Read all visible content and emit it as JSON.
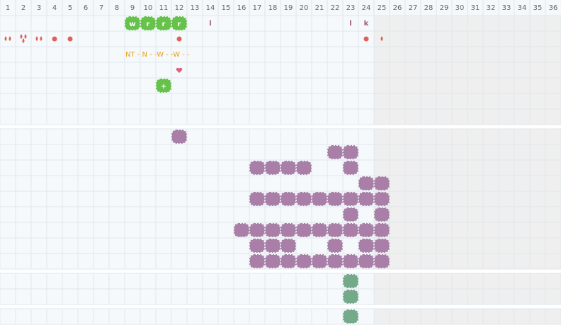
{
  "header": {
    "columns": [
      1,
      2,
      3,
      4,
      5,
      6,
      7,
      8,
      9,
      10,
      11,
      12,
      13,
      14,
      15,
      16,
      17,
      18,
      19,
      20,
      21,
      22,
      23,
      24,
      25,
      26,
      27,
      28,
      29,
      30,
      31,
      32,
      33,
      34,
      35,
      36
    ]
  },
  "sections": [
    {
      "rows": 7,
      "cells": [
        {
          "row": 0,
          "col": 9,
          "kind": "green",
          "text": "w"
        },
        {
          "row": 0,
          "col": 10,
          "kind": "green",
          "text": "r"
        },
        {
          "row": 0,
          "col": 11,
          "kind": "green",
          "text": "r"
        },
        {
          "row": 0,
          "col": 12,
          "kind": "green",
          "text": "r"
        },
        {
          "row": 0,
          "col": 14,
          "kind": "letter",
          "text": "l"
        },
        {
          "row": 0,
          "col": 23,
          "kind": "letter",
          "text": "l"
        },
        {
          "row": 0,
          "col": 24,
          "kind": "letter",
          "text": "k"
        },
        {
          "row": 1,
          "col": 1,
          "kind": "drops",
          "count": 2
        },
        {
          "row": 1,
          "col": 2,
          "kind": "drops",
          "count": 3
        },
        {
          "row": 1,
          "col": 3,
          "kind": "drops",
          "count": 2
        },
        {
          "row": 1,
          "col": 4,
          "kind": "dot"
        },
        {
          "row": 1,
          "col": 5,
          "kind": "dot"
        },
        {
          "row": 1,
          "col": 12,
          "kind": "dot"
        },
        {
          "row": 1,
          "col": 24,
          "kind": "dot"
        },
        {
          "row": 1,
          "col": 25,
          "kind": "drops",
          "count": 1
        },
        {
          "row": 2,
          "col": 9,
          "kind": "note",
          "text": "NT - N - -W - -W - -"
        },
        {
          "row": 3,
          "col": 12,
          "kind": "heart"
        },
        {
          "row": 4,
          "col": 11,
          "kind": "green",
          "text": "+"
        }
      ]
    },
    {
      "rows": 9,
      "cells": [
        {
          "row": 0,
          "col": 12,
          "kind": "purple"
        },
        {
          "row": 1,
          "col": 22,
          "kind": "purple"
        },
        {
          "row": 1,
          "col": 23,
          "kind": "purple"
        },
        {
          "row": 2,
          "col": 17,
          "kind": "purple"
        },
        {
          "row": 2,
          "col": 18,
          "kind": "purple"
        },
        {
          "row": 2,
          "col": 19,
          "kind": "purple"
        },
        {
          "row": 2,
          "col": 20,
          "kind": "purple"
        },
        {
          "row": 2,
          "col": 23,
          "kind": "purple"
        },
        {
          "row": 3,
          "col": 24,
          "kind": "purple"
        },
        {
          "row": 3,
          "col": 25,
          "kind": "purple"
        },
        {
          "row": 4,
          "col": 17,
          "kind": "purple"
        },
        {
          "row": 4,
          "col": 18,
          "kind": "purple"
        },
        {
          "row": 4,
          "col": 19,
          "kind": "purple"
        },
        {
          "row": 4,
          "col": 20,
          "kind": "purple"
        },
        {
          "row": 4,
          "col": 21,
          "kind": "purple"
        },
        {
          "row": 4,
          "col": 22,
          "kind": "purple"
        },
        {
          "row": 4,
          "col": 23,
          "kind": "purple"
        },
        {
          "row": 4,
          "col": 24,
          "kind": "purple"
        },
        {
          "row": 4,
          "col": 25,
          "kind": "purple"
        },
        {
          "row": 5,
          "col": 23,
          "kind": "purple"
        },
        {
          "row": 5,
          "col": 25,
          "kind": "purple"
        },
        {
          "row": 6,
          "col": 16,
          "kind": "purple"
        },
        {
          "row": 6,
          "col": 17,
          "kind": "purple"
        },
        {
          "row": 6,
          "col": 18,
          "kind": "purple"
        },
        {
          "row": 6,
          "col": 19,
          "kind": "purple"
        },
        {
          "row": 6,
          "col": 20,
          "kind": "purple"
        },
        {
          "row": 6,
          "col": 21,
          "kind": "purple"
        },
        {
          "row": 6,
          "col": 22,
          "kind": "purple"
        },
        {
          "row": 6,
          "col": 23,
          "kind": "purple"
        },
        {
          "row": 6,
          "col": 24,
          "kind": "purple"
        },
        {
          "row": 6,
          "col": 25,
          "kind": "purple"
        },
        {
          "row": 7,
          "col": 17,
          "kind": "purple"
        },
        {
          "row": 7,
          "col": 18,
          "kind": "purple"
        },
        {
          "row": 7,
          "col": 19,
          "kind": "purple"
        },
        {
          "row": 7,
          "col": 22,
          "kind": "purple"
        },
        {
          "row": 7,
          "col": 24,
          "kind": "purple"
        },
        {
          "row": 7,
          "col": 25,
          "kind": "purple"
        },
        {
          "row": 8,
          "col": 17,
          "kind": "purple"
        },
        {
          "row": 8,
          "col": 18,
          "kind": "purple"
        },
        {
          "row": 8,
          "col": 19,
          "kind": "purple"
        },
        {
          "row": 8,
          "col": 20,
          "kind": "purple"
        },
        {
          "row": 8,
          "col": 21,
          "kind": "purple"
        },
        {
          "row": 8,
          "col": 22,
          "kind": "purple"
        },
        {
          "row": 8,
          "col": 23,
          "kind": "purple"
        },
        {
          "row": 8,
          "col": 24,
          "kind": "purple"
        },
        {
          "row": 8,
          "col": 25,
          "kind": "purple"
        }
      ]
    },
    {
      "rows": 2,
      "cells": [
        {
          "row": 0,
          "col": 23,
          "kind": "teal"
        },
        {
          "row": 1,
          "col": 23,
          "kind": "teal"
        }
      ]
    },
    {
      "rows": 1,
      "cells": [
        {
          "row": 0,
          "col": 23,
          "kind": "teal"
        }
      ]
    }
  ]
}
